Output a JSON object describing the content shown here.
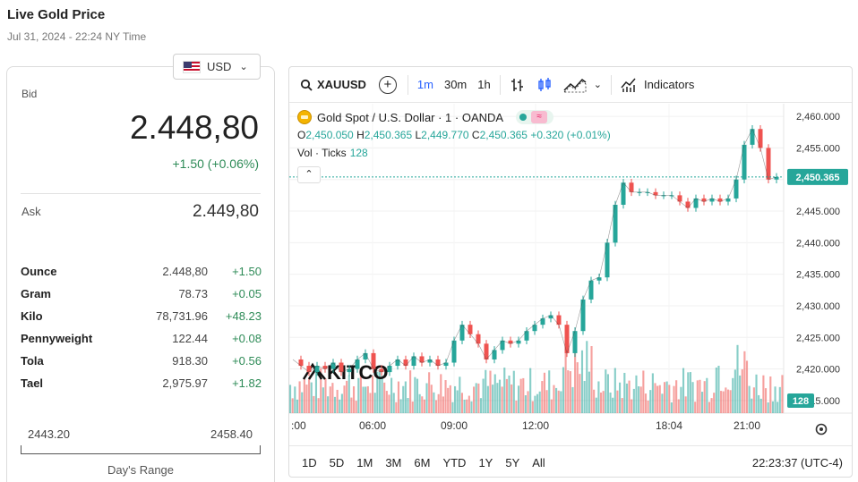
{
  "header": {
    "title": "Live Gold Price",
    "subtitle": "Jul 31, 2024 - 22:24 NY Time"
  },
  "currency": {
    "selected": "USD",
    "flag_icon": "us-flag-icon"
  },
  "bid": {
    "label": "Bid",
    "value": "2.448,80",
    "change": "+1.50 (+0.06%)"
  },
  "ask": {
    "label": "Ask",
    "value": "2.449,80"
  },
  "units": [
    {
      "name": "Ounce",
      "price": "2.448,80",
      "change": "+1.50"
    },
    {
      "name": "Gram",
      "price": "78.73",
      "change": "+0.05"
    },
    {
      "name": "Kilo",
      "price": "78,731.96",
      "change": "+48.23"
    },
    {
      "name": "Pennyweight",
      "price": "122.44",
      "change": "+0.08"
    },
    {
      "name": "Tola",
      "price": "918.30",
      "change": "+0.56"
    },
    {
      "name": "Tael",
      "price": "2,975.97",
      "change": "+1.82"
    }
  ],
  "days_range": {
    "low": "2443.20",
    "high": "2458.40",
    "label": "Day's Range"
  },
  "chart": {
    "toolbar": {
      "symbol": "XAUUSD",
      "intervals": [
        "1m",
        "30m",
        "1h"
      ],
      "active_interval": "1m",
      "indicators_label": "Indicators"
    },
    "legend": {
      "name": "Gold Spot / U.S. Dollar · 1 · OANDA",
      "o_label": "O",
      "o": "2,450.050",
      "h_label": "H",
      "h": "2,450.365",
      "l_label": "L",
      "l": "2,449.770",
      "c_label": "C",
      "c": "2,450.365",
      "change": "+0.320 (+0.01%)",
      "vol_label": "Vol · Ticks",
      "vol": "128"
    },
    "watermark": "KITCO",
    "price_label": "2,450.365",
    "volume_label": "128",
    "ranges": [
      "1D",
      "5D",
      "1M",
      "3M",
      "6M",
      "YTD",
      "1Y",
      "5Y",
      "All"
    ],
    "clock": "22:23:37 (UTC-4)",
    "colors": {
      "up": "#26a69a",
      "down": "#ef5350",
      "accent": "#2962ff"
    }
  },
  "chart_data": {
    "type": "line",
    "y_ticks": [
      "2,460.000",
      "2,455.000",
      "2,450.000",
      "2,445.000",
      "2,440.000",
      "2,435.000",
      "2,430.000",
      "2,425.000",
      "2,420.000",
      "2,415.000"
    ],
    "ylim": [
      2413,
      2462
    ],
    "x_ticks": [
      ":00",
      "06:00",
      "09:00",
      "12:00",
      "18:04",
      "21:00"
    ],
    "x": [
      0,
      1,
      2,
      3,
      4,
      5,
      6,
      7,
      8,
      9,
      10,
      11,
      12,
      13,
      14,
      15,
      16,
      17,
      18,
      19,
      20,
      21,
      22,
      23,
      24,
      25,
      26,
      27,
      28,
      29,
      30,
      31,
      32,
      33,
      34,
      35,
      36,
      37,
      38,
      39,
      40,
      41,
      42,
      43,
      44,
      45,
      46,
      47,
      48,
      49,
      50,
      51,
      52,
      53,
      54,
      55,
      56,
      57,
      58,
      59,
      60
    ],
    "series": [
      {
        "values": [
          2421.5,
          2420.5,
          2419.5,
          2420.5,
          2420.0,
          2421.0,
          2419.5,
          2420.0,
          2421.5,
          2422.5,
          2420.0,
          2419.5,
          2420.5,
          2421.5,
          2420.5,
          2422.0,
          2421.0,
          2421.5,
          2420.5,
          2421.0,
          2424.5,
          2427.0,
          2425.5,
          2424.0,
          2421.5,
          2423.0,
          2424.5,
          2424.0,
          2424.5,
          2426.0,
          2427.0,
          2428.0,
          2428.5,
          2427.0,
          2422.5,
          2426.0,
          2431.0,
          2434.0,
          2434.5,
          2440.0,
          2446.0,
          2449.5,
          2448.0,
          2448.0,
          2448.0,
          2447.5,
          2447.5,
          2447.5,
          2446.5,
          2445.5,
          2447.0,
          2446.5,
          2447.0,
          2446.5,
          2447.0,
          2450.0,
          2455.5,
          2458.0,
          2455.0,
          2450.0,
          2450.4
        ]
      }
    ]
  }
}
